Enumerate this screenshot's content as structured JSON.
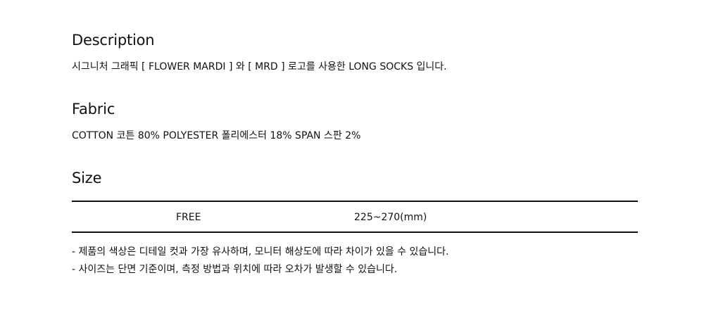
{
  "description": {
    "heading": "Description",
    "text": "시그니처 그래픽 [ FLOWER MARDI ] 와 [ MRD ] 로고를 사용한 LONG SOCKS 입니다."
  },
  "fabric": {
    "heading": "Fabric",
    "text": "COTTON 코튼 80%  POLYESTER 폴리에스터 18%  SPAN 스판 2%"
  },
  "size": {
    "heading": "Size",
    "rows": [
      {
        "size": "FREE",
        "range": "225~270(mm)"
      }
    ]
  },
  "notes": [
    "- 제품의 색상은 디테일 컷과 가장 유사하며, 모니터 해상도에 따라 차이가 있을 수 있습니다.",
    "- 사이즈는 단면 기준이며, 측정 방법과 위치에 따라 오차가 발생할 수 있습니다."
  ]
}
